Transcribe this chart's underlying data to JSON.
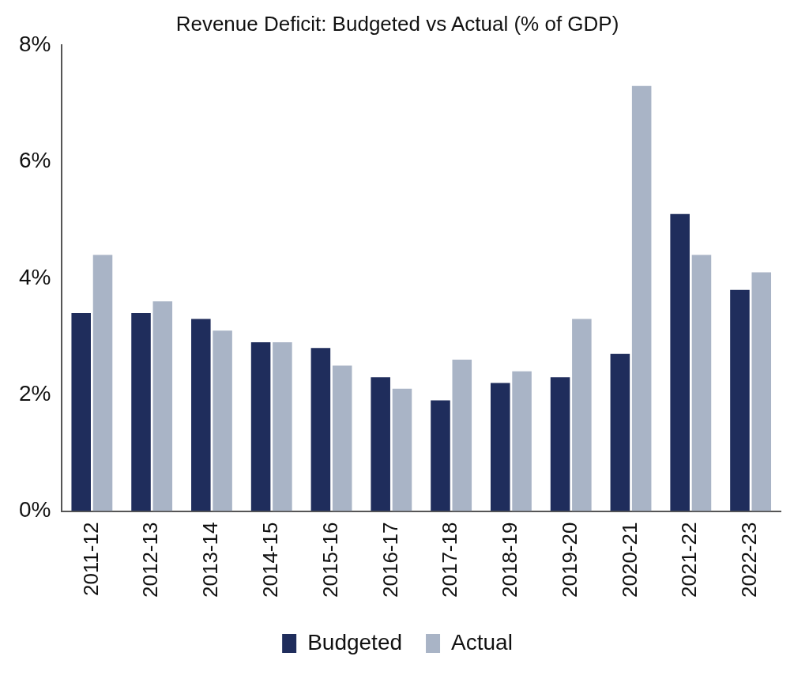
{
  "chart_data": {
    "type": "bar",
    "title": "Revenue Deficit: Budgeted vs Actual (% of GDP)",
    "categories": [
      "2011-12",
      "2012-13",
      "2013-14",
      "2014-15",
      "2015-16",
      "2016-17",
      "2017-18",
      "2018-19",
      "2019-20",
      "2020-21",
      "2021-22",
      "2022-23"
    ],
    "series": [
      {
        "name": "Budgeted",
        "color": "#1f2d5c",
        "values": [
          3.4,
          3.4,
          3.3,
          2.9,
          2.8,
          2.3,
          1.9,
          2.2,
          2.3,
          2.7,
          5.1,
          3.8
        ]
      },
      {
        "name": "Actual",
        "color": "#a9b4c6",
        "values": [
          4.4,
          3.6,
          3.1,
          2.9,
          2.5,
          2.1,
          2.6,
          2.4,
          3.3,
          7.3,
          4.4,
          4.1
        ]
      }
    ],
    "ylim": [
      0,
      8
    ],
    "yticks": [
      {
        "value": 0,
        "label": "0%"
      },
      {
        "value": 2,
        "label": "2%"
      },
      {
        "value": 4,
        "label": "4%"
      },
      {
        "value": 6,
        "label": "6%"
      },
      {
        "value": 8,
        "label": "8%"
      }
    ],
    "grid": false,
    "legend": "bottom"
  }
}
